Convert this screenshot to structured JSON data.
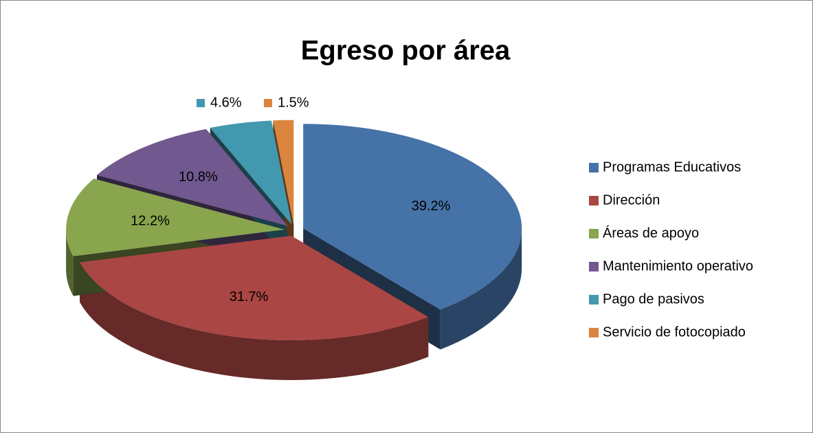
{
  "chart_data": {
    "type": "pie",
    "title": "Egreso por área",
    "categories": [
      "Programas Educativos",
      "Dirección",
      "Áreas de apoyo",
      "Mantenimiento operativo",
      "Pago de pasivos",
      "Servicio de fotocopiado"
    ],
    "values": [
      39.2,
      31.7,
      12.2,
      10.8,
      4.6,
      1.5
    ],
    "value_labels": [
      "39.2%",
      "31.7%",
      "12.2%",
      "10.8%",
      "4.6%",
      "1.5%"
    ],
    "colors": [
      "#4572a7",
      "#aa4643",
      "#89a54e",
      "#71588f",
      "#4198af",
      "#db843d"
    ],
    "legend": "right"
  }
}
